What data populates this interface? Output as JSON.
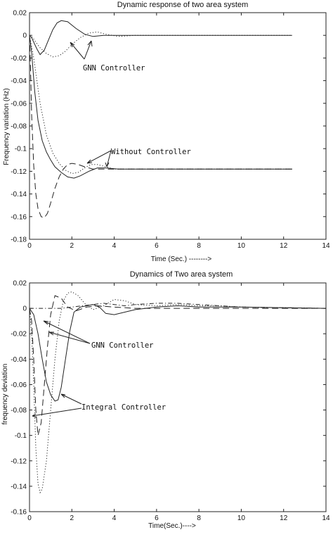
{
  "chart_data": [
    {
      "type": "line",
      "title": "Dynamic response of two area system",
      "xlabel": "Time (Sec.) -------->",
      "ylabel": "Frequency variation (Hz)",
      "xlim": [
        0,
        14
      ],
      "ylim": [
        -0.18,
        0.02
      ],
      "xticks": [
        0,
        2,
        4,
        6,
        8,
        10,
        12,
        14
      ],
      "yticks": [
        0.02,
        0,
        -0.02,
        -0.04,
        -0.06,
        -0.08,
        -0.1,
        -0.12,
        -0.14,
        -0.16,
        -0.18
      ],
      "xtick_labels": [
        "0",
        "2",
        "4",
        "6",
        "8",
        "10",
        "12",
        "14"
      ],
      "ytick_labels": [
        "0.02",
        "0",
        "-0.02",
        "-0.04",
        "-0.06",
        "-0.08",
        "-0.1",
        "-0.12",
        "-0.14",
        "-0.16",
        "-0.18"
      ],
      "annotations": [
        "GNN Controller",
        "Without Controller"
      ],
      "series": [
        {
          "style": "solid",
          "x": [
            0,
            0.1,
            0.2,
            0.35,
            0.5,
            0.7,
            0.9,
            1.1,
            1.3,
            1.5,
            1.8,
            2.2,
            2.6,
            3.0,
            3.5,
            4.0,
            5.0,
            12.4
          ],
          "y": [
            0,
            -0.002,
            -0.006,
            -0.012,
            -0.017,
            -0.013,
            -0.004,
            0.005,
            0.011,
            0.013,
            0.012,
            0.006,
            0.001,
            -0.001,
            0,
            0,
            0,
            0
          ]
        },
        {
          "style": "dotted",
          "x": [
            0,
            0.15,
            0.3,
            0.5,
            0.8,
            1.1,
            1.4,
            1.7,
            2.0,
            2.4,
            2.8,
            3.2,
            3.6,
            4.2,
            5.0,
            12.4
          ],
          "y": [
            0,
            -0.002,
            -0.006,
            -0.011,
            -0.016,
            -0.019,
            -0.018,
            -0.014,
            -0.008,
            -0.002,
            0.002,
            0.003,
            0.001,
            -0.001,
            0,
            0
          ]
        },
        {
          "style": "solid",
          "x": [
            0,
            0.1,
            0.25,
            0.4,
            0.6,
            0.8,
            1.0,
            1.2,
            1.5,
            1.8,
            2.1,
            2.4,
            2.8,
            3.2,
            3.6,
            4.2,
            5.0,
            12.4
          ],
          "y": [
            0,
            -0.015,
            -0.05,
            -0.075,
            -0.093,
            -0.103,
            -0.11,
            -0.116,
            -0.121,
            -0.125,
            -0.126,
            -0.124,
            -0.12,
            -0.117,
            -0.117,
            -0.118,
            -0.118,
            -0.118
          ]
        },
        {
          "style": "dashed",
          "x": [
            0,
            0.05,
            0.1,
            0.2,
            0.3,
            0.4,
            0.55,
            0.7,
            0.85,
            1.0,
            1.2,
            1.4,
            1.6,
            1.8,
            2.0,
            2.3,
            2.6,
            3.0,
            3.5,
            4.0,
            5.0,
            12.4
          ],
          "y": [
            0,
            -0.03,
            -0.07,
            -0.115,
            -0.14,
            -0.153,
            -0.16,
            -0.161,
            -0.157,
            -0.148,
            -0.135,
            -0.125,
            -0.118,
            -0.114,
            -0.113,
            -0.114,
            -0.116,
            -0.118,
            -0.118,
            -0.118,
            -0.118,
            -0.118
          ]
        },
        {
          "style": "dotted",
          "x": [
            0,
            0.2,
            0.5,
            0.8,
            1.1,
            1.4,
            1.7,
            2.0,
            2.3,
            2.6,
            2.9,
            3.2,
            3.6,
            4.0,
            4.5,
            5.0,
            12.4
          ],
          "y": [
            0,
            -0.02,
            -0.06,
            -0.088,
            -0.104,
            -0.113,
            -0.119,
            -0.122,
            -0.121,
            -0.117,
            -0.114,
            -0.114,
            -0.116,
            -0.118,
            -0.118,
            -0.118,
            -0.118
          ]
        }
      ]
    },
    {
      "type": "line",
      "title": "Dynamics of Two area system",
      "xlabel": "Time(Sec.)---->",
      "ylabel": "frequency deviation",
      "xlim": [
        0,
        14
      ],
      "ylim": [
        -0.16,
        0.02
      ],
      "xticks": [
        0,
        2,
        4,
        6,
        8,
        10,
        12,
        14
      ],
      "yticks": [
        0.02,
        0,
        -0.02,
        -0.04,
        -0.06,
        -0.08,
        -0.1,
        -0.12,
        -0.14,
        -0.16
      ],
      "xtick_labels": [
        "0",
        "2",
        "4",
        "6",
        "8",
        "10",
        "12",
        "14"
      ],
      "ytick_labels": [
        "0.02",
        "0",
        "-0.02",
        "-0.04",
        "-0.06",
        "-0.08",
        "-0.1",
        "-0.12",
        "-0.14",
        "-0.16"
      ],
      "annotations": [
        "GNN Controller",
        "Integral Controller"
      ],
      "series": [
        {
          "style": "dashed",
          "x": [
            0,
            0.1,
            0.2,
            0.3,
            0.4,
            0.55,
            0.7,
            0.85,
            1.0,
            1.2,
            1.5,
            1.8,
            2.2,
            2.7,
            3.2,
            4.0,
            5.0,
            14
          ],
          "y": [
            0,
            -0.01,
            -0.04,
            -0.08,
            -0.1,
            -0.09,
            -0.06,
            -0.03,
            -0.005,
            0.01,
            0.008,
            0.001,
            -0.002,
            0.001,
            0.002,
            0.001,
            0,
            0
          ]
        },
        {
          "style": "dotted",
          "x": [
            0,
            0.1,
            0.2,
            0.3,
            0.4,
            0.5,
            0.6,
            0.8,
            1.0,
            1.2,
            1.4,
            1.6,
            1.8,
            2.0,
            2.3,
            2.6,
            3.0,
            3.5,
            4.0,
            4.5,
            5.0,
            6.0,
            7.0,
            8.0,
            9.0,
            10.0,
            14
          ],
          "y": [
            0,
            -0.02,
            -0.06,
            -0.11,
            -0.138,
            -0.145,
            -0.142,
            -0.12,
            -0.08,
            -0.04,
            -0.01,
            0.006,
            0.012,
            0.013,
            0.01,
            0.004,
            -0.001,
            0.002,
            0.007,
            0.006,
            0.003,
            0.002,
            0.003,
            0.002,
            0.002,
            0.001,
            0
          ]
        },
        {
          "style": "solid",
          "x": [
            0,
            0.2,
            0.4,
            0.6,
            0.8,
            1.0,
            1.2,
            1.35,
            1.5,
            1.7,
            1.9,
            2.1,
            2.4,
            2.7,
            3.0,
            3.3,
            3.6,
            4.0,
            4.5,
            5.0,
            6.0,
            7.0,
            8.0,
            9.0,
            10.0,
            14
          ],
          "y": [
            0,
            -0.005,
            -0.02,
            -0.04,
            -0.058,
            -0.068,
            -0.073,
            -0.072,
            -0.062,
            -0.04,
            -0.018,
            -0.003,
            0.001,
            0.002,
            0.003,
            0.001,
            -0.004,
            -0.005,
            -0.003,
            -0.001,
            0.001,
            0.002,
            0.001,
            0.001,
            0.001,
            0
          ]
        },
        {
          "style": "dashdot",
          "x": [
            0,
            1.5,
            2.0,
            2.5,
            3.0,
            3.5,
            4.0,
            4.5,
            5.0,
            6.0,
            7.0,
            8.0,
            9.0,
            10.0,
            14
          ],
          "y": [
            0,
            0,
            0.001,
            0.002,
            0.003,
            0.004,
            0.003,
            0.002,
            0.003,
            0.004,
            0.004,
            0.003,
            0.002,
            0.001,
            0
          ]
        }
      ]
    }
  ]
}
